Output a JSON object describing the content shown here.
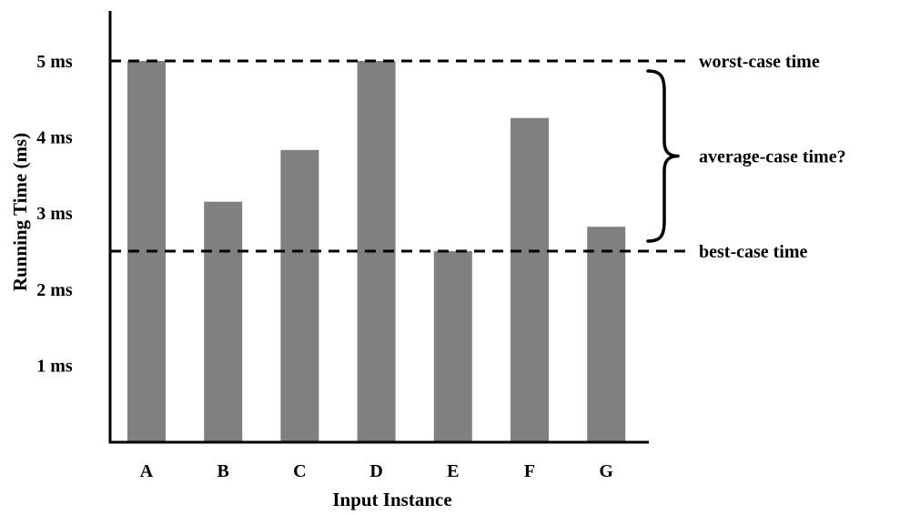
{
  "chart_data": {
    "type": "bar",
    "title": "",
    "xlabel": "Input Instance",
    "ylabel": "Running Time (ms)",
    "categories": [
      "A",
      "B",
      "C",
      "D",
      "E",
      "F",
      "G"
    ],
    "values": [
      5.0,
      3.15,
      3.83,
      5.0,
      2.5,
      4.25,
      2.82
    ],
    "ylim": [
      0,
      5.5
    ],
    "yticks": [
      1,
      2,
      3,
      4,
      5
    ],
    "ytick_labels": [
      "1 ms",
      "2 ms",
      "3 ms",
      "4 ms",
      "5 ms"
    ],
    "grid": false,
    "bar_color": "#808080",
    "reference_lines": [
      {
        "name": "worst-case",
        "value": 5.0,
        "label": "worst-case time",
        "style": "dashed"
      },
      {
        "name": "best-case",
        "value": 2.5,
        "label": "best-case time",
        "style": "dashed"
      }
    ],
    "brace_annotation": {
      "from": 2.5,
      "to": 5.0,
      "label": "average-case time?"
    }
  }
}
